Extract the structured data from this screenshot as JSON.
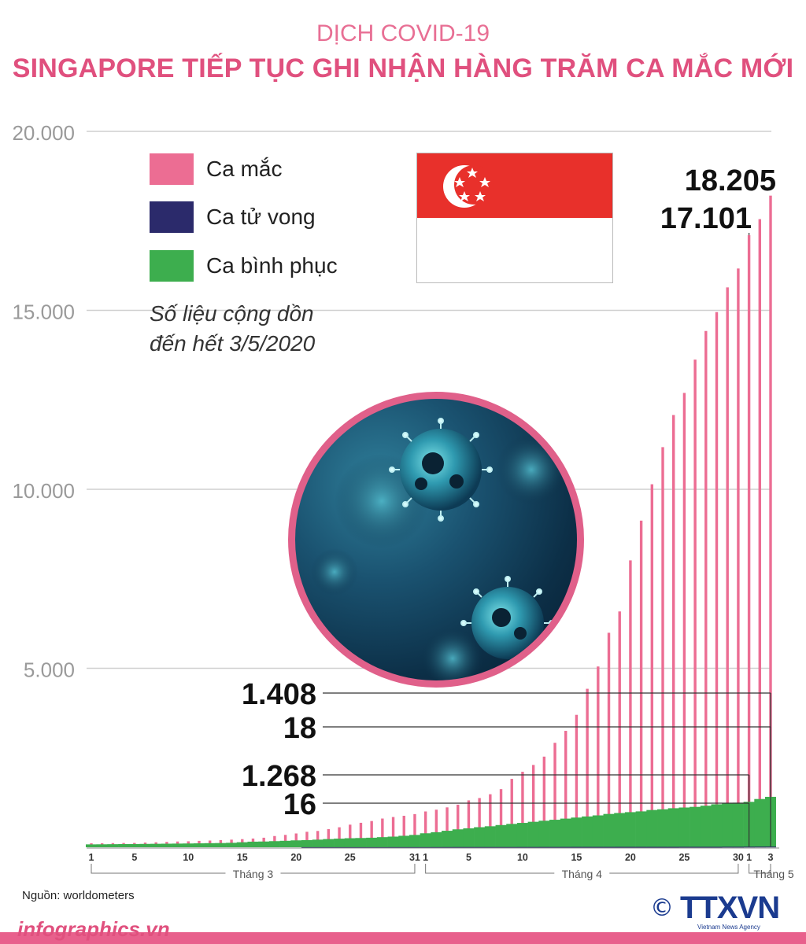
{
  "header": {
    "pretitle": "DỊCH COVID-19",
    "title": "SINGAPORE TIẾP TỤC GHI NHẬN HÀNG TRĂM CA MẮC MỚI"
  },
  "legend": {
    "items": [
      {
        "label": "Ca mắc",
        "color": "#ec6d93"
      },
      {
        "label": "Ca tử vong",
        "color": "#2b2a6b"
      },
      {
        "label": "Ca bình phục",
        "color": "#3dae4e"
      }
    ],
    "note_line1": "Số liệu cộng dồn",
    "note_line2": "đến hết 3/5/2020"
  },
  "source": "Nguồn: worldometers",
  "footer": {
    "site": "infographics.vn",
    "logo_copyright": "©",
    "logo_brand": "TTXVN",
    "logo_sub": "Vietnam News Agency"
  },
  "chart_data": {
    "type": "bar",
    "ylim": [
      0,
      20000
    ],
    "yticks": [
      5000,
      10000,
      15000,
      20000
    ],
    "ytick_labels": [
      "5.000",
      "10.000",
      "15.000",
      "20.000"
    ],
    "grid": true,
    "colors": {
      "cases": "#ec6d93",
      "deaths": "#2b2a6b",
      "recovered": "#3dae4e",
      "tick": "#9a9a9a",
      "grid": "#cfcfcf"
    },
    "x_tick_labels": [
      {
        "i": 0,
        "label": "1"
      },
      {
        "i": 4,
        "label": "5"
      },
      {
        "i": 9,
        "label": "10"
      },
      {
        "i": 14,
        "label": "15"
      },
      {
        "i": 19,
        "label": "20"
      },
      {
        "i": 24,
        "label": "25"
      },
      {
        "i": 30,
        "label": "31"
      },
      {
        "i": 31,
        "label": "1"
      },
      {
        "i": 35,
        "label": "5"
      },
      {
        "i": 40,
        "label": "10"
      },
      {
        "i": 45,
        "label": "15"
      },
      {
        "i": 50,
        "label": "20"
      },
      {
        "i": 55,
        "label": "25"
      },
      {
        "i": 60,
        "label": "30"
      },
      {
        "i": 61,
        "label": "1"
      },
      {
        "i": 63,
        "label": "3"
      }
    ],
    "months": [
      {
        "label": "Tháng 3",
        "start": 0,
        "end": 30
      },
      {
        "label": "Tháng 4",
        "start": 31,
        "end": 60
      },
      {
        "label": "Tháng 5",
        "start": 61,
        "end": 63
      }
    ],
    "series": [
      {
        "name": "Ca mắc",
        "values": [
          110,
          112,
          115,
          118,
          120,
          130,
          138,
          150,
          160,
          166,
          178,
          187,
          200,
          212,
          226,
          243,
          266,
          313,
          345,
          385,
          432,
          455,
          507,
          558,
          631,
          683,
          732,
          802,
          844,
          879,
          926,
          1000,
          1049,
          1114,
          1189,
          1309,
          1375,
          1481,
          1623,
          1910,
          2108,
          2299,
          2532,
          2918,
          3252,
          3699,
          4427,
          5050,
          5992,
          6588,
          8014,
          9125,
          10141,
          11178,
          12075,
          12693,
          13624,
          14423,
          14951,
          15641,
          16169,
          17101,
          17548,
          18205
        ]
      },
      {
        "name": "Ca tử vong",
        "values": [
          0,
          0,
          0,
          0,
          0,
          0,
          0,
          0,
          0,
          0,
          0,
          0,
          0,
          0,
          0,
          0,
          0,
          0,
          0,
          0,
          2,
          2,
          2,
          2,
          2,
          2,
          2,
          2,
          3,
          3,
          3,
          3,
          4,
          5,
          6,
          6,
          6,
          6,
          6,
          6,
          7,
          7,
          8,
          8,
          9,
          10,
          10,
          10,
          10,
          11,
          11,
          11,
          11,
          11,
          11,
          12,
          12,
          12,
          12,
          14,
          14,
          16,
          17,
          18
        ]
      },
      {
        "name": "Ca bình phục",
        "values": [
          80,
          82,
          85,
          88,
          90,
          93,
          96,
          99,
          102,
          105,
          109,
          114,
          117,
          124,
          140,
          156,
          160,
          170,
          180,
          192,
          198,
          212,
          228,
          240,
          252,
          258,
          266,
          282,
          297,
          320,
          344,
          390,
          420,
          460,
          500,
          528,
          560,
          586,
          620,
          652,
          680,
          711,
          740,
          768,
          800,
          829,
          860,
          890,
          930,
          956,
          980,
          1002,
          1040,
          1060,
          1090,
          1110,
          1128,
          1160,
          1200,
          1230,
          1244,
          1268,
          1347,
          1408
        ]
      }
    ],
    "annotations": [
      {
        "label": "18.205",
        "i": 63,
        "series": 0
      },
      {
        "label": "17.101",
        "i": 61,
        "series": 0
      },
      {
        "label": "1.408",
        "i": 63,
        "series": 2
      },
      {
        "label": "18",
        "i": 63,
        "series": 1
      },
      {
        "label": "1.268",
        "i": 61,
        "series": 2
      },
      {
        "label": "16",
        "i": 61,
        "series": 1
      }
    ]
  }
}
